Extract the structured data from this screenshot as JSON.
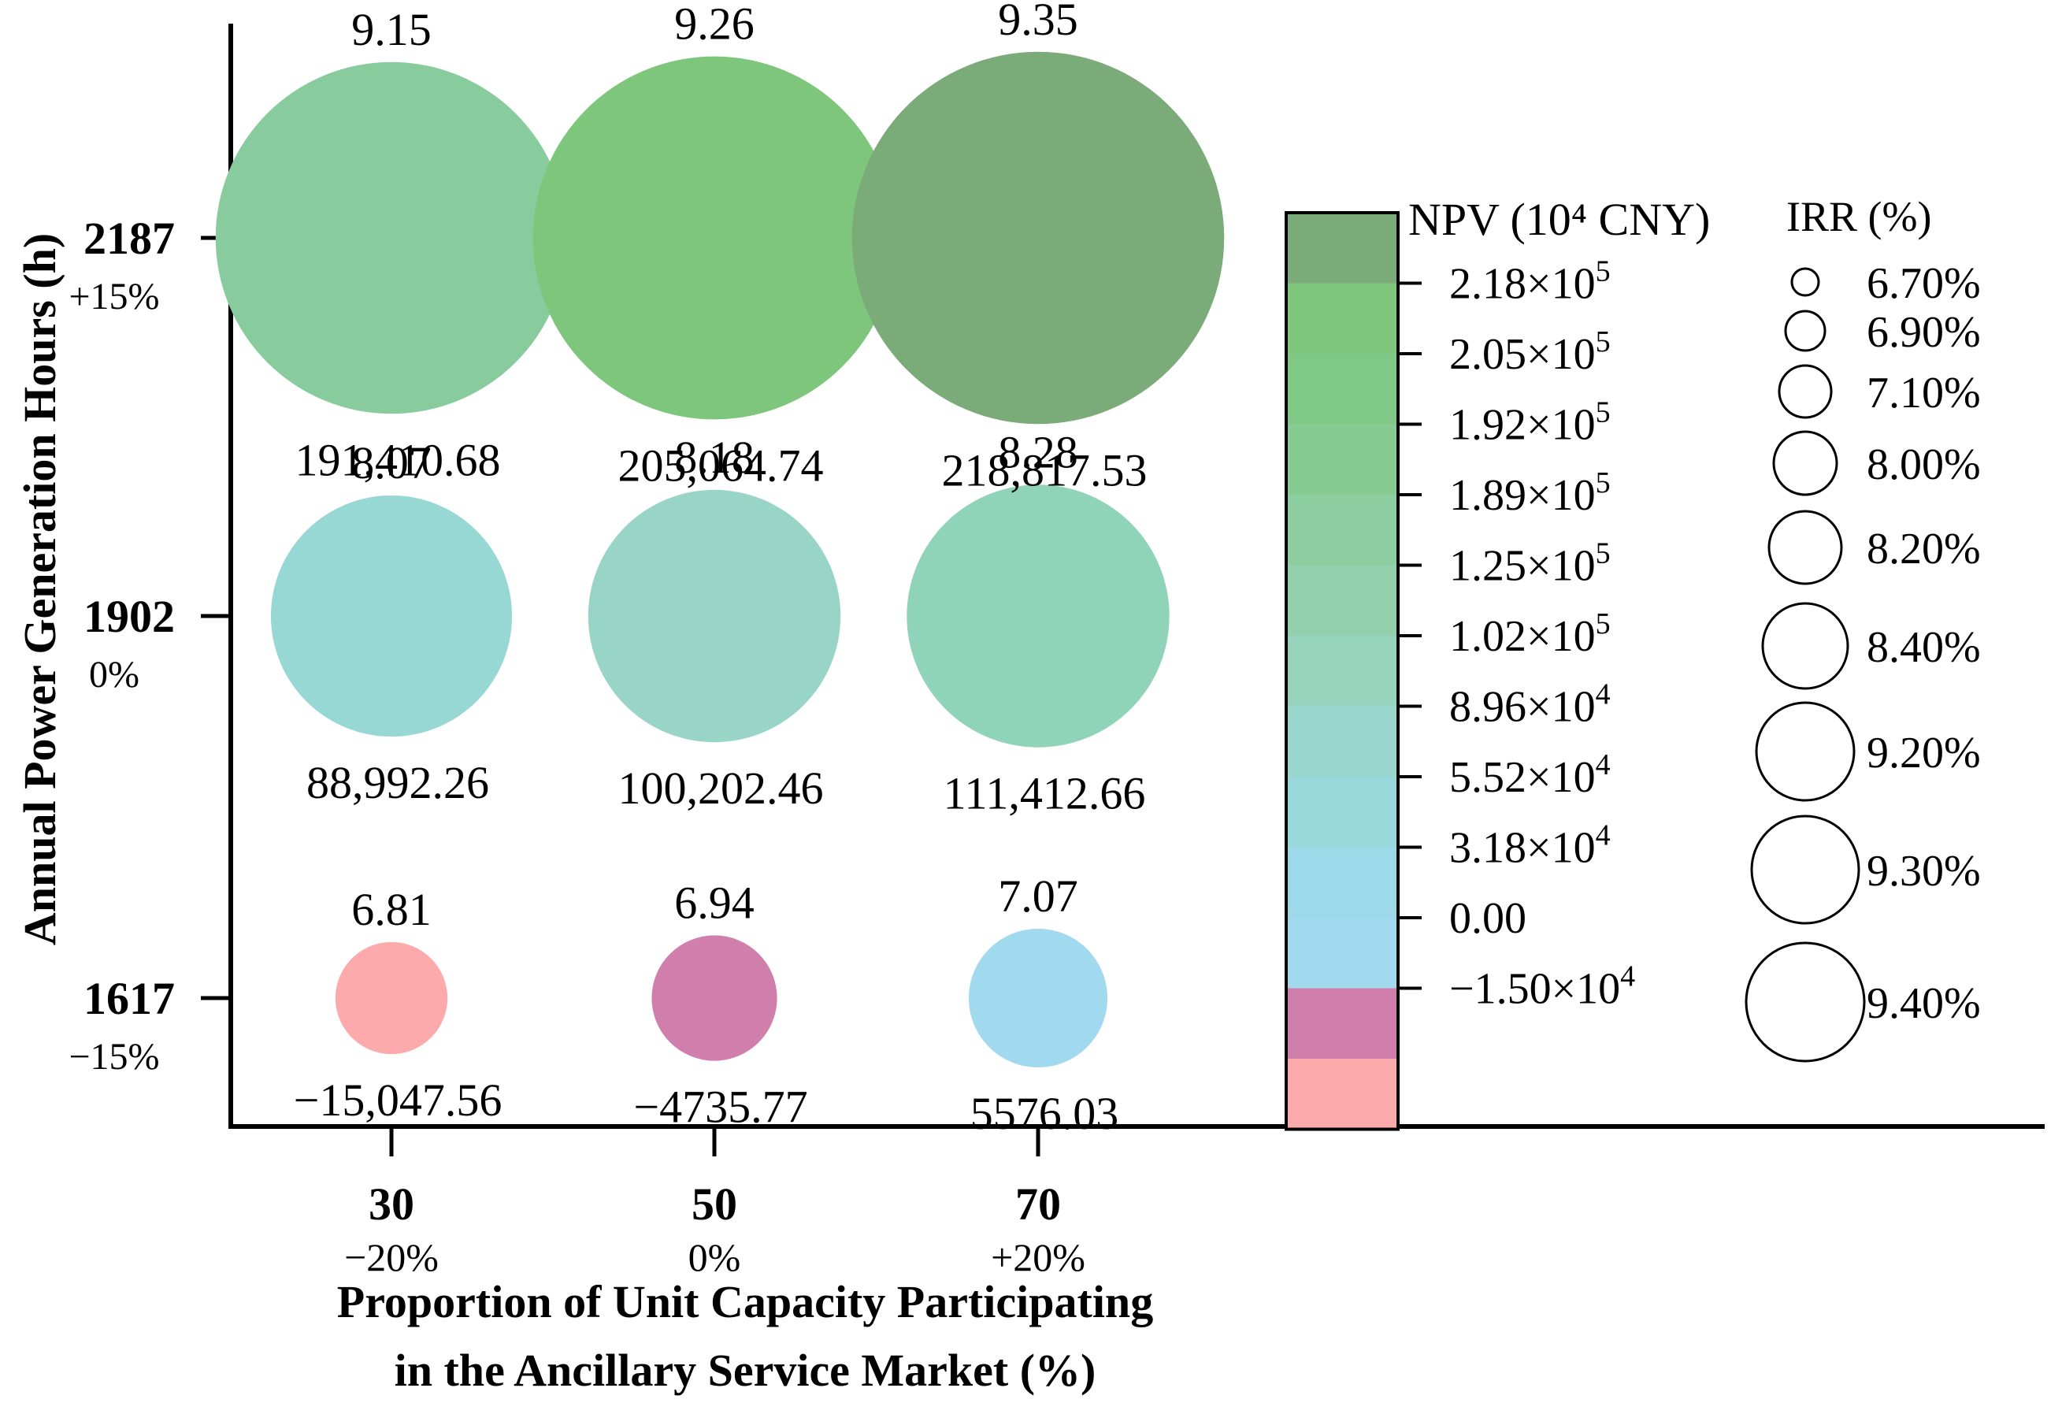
{
  "chart_data": {
    "type": "bubble",
    "xlabel_lines": [
      "Proportion of Unit Capacity Participating",
      "in the Ancillary Service Market (%)"
    ],
    "ylabel": "Annual Power Generation Hours (h)",
    "x_categories": [
      {
        "value": "30",
        "change": "−20%"
      },
      {
        "value": "50",
        "change": "0%"
      },
      {
        "value": "70",
        "change": "+20%"
      }
    ],
    "y_categories": [
      {
        "value": "2187",
        "change": "+15%"
      },
      {
        "value": "1902",
        "change": "0%"
      },
      {
        "value": "1617",
        "change": "−15%"
      }
    ],
    "points": [
      {
        "x": "30",
        "y": "2187",
        "irr": 9.15,
        "irr_label": "9.15",
        "npv": 191410.68,
        "npv_label": "191,410.68",
        "color": "#88cc9e"
      },
      {
        "x": "50",
        "y": "2187",
        "irr": 9.26,
        "irr_label": "9.26",
        "npv": 205064.74,
        "npv_label": "205,064.74",
        "color": "#7dc67c"
      },
      {
        "x": "70",
        "y": "2187",
        "irr": 9.35,
        "irr_label": "9.35",
        "npv": 218817.53,
        "npv_label": "218,817.53",
        "color": "#7aab79"
      },
      {
        "x": "30",
        "y": "1902",
        "irr": 8.07,
        "irr_label": "8.07",
        "npv": 88992.26,
        "npv_label": "88,992.26",
        "color": "#98d8d4"
      },
      {
        "x": "50",
        "y": "1902",
        "irr": 8.18,
        "irr_label": "8.18",
        "npv": 100202.46,
        "npv_label": "100,202.46",
        "color": "#98d5c6"
      },
      {
        "x": "70",
        "y": "1902",
        "irr": 8.28,
        "irr_label": "8.28",
        "npv": 111412.66,
        "npv_label": "111,412.66",
        "color": "#8fd3b8"
      },
      {
        "x": "30",
        "y": "1617",
        "irr": 6.81,
        "irr_label": "6.81",
        "npv": -15047.56,
        "npv_label": "−15,047.56",
        "color": "#fcaaab"
      },
      {
        "x": "50",
        "y": "1617",
        "irr": 6.94,
        "irr_label": "6.94",
        "npv": -4735.77,
        "npv_label": "−4735.77",
        "color": "#d07fad"
      },
      {
        "x": "70",
        "y": "1617",
        "irr": 7.07,
        "irr_label": "7.07",
        "npv": 5576.03,
        "npv_label": "5576.03",
        "color": "#a1d9ee"
      }
    ],
    "colorbar": {
      "title": "NPV (10⁴ CNY)",
      "ticks": [
        {
          "mantissa": "2.18×10",
          "exp": "5",
          "value": 218000
        },
        {
          "mantissa": "2.05×10",
          "exp": "5",
          "value": 205000
        },
        {
          "mantissa": "1.92×10",
          "exp": "5",
          "value": 192000
        },
        {
          "mantissa": "1.89×10",
          "exp": "5",
          "value": 189000
        },
        {
          "mantissa": "1.25×10",
          "exp": "5",
          "value": 125000
        },
        {
          "mantissa": "1.02×10",
          "exp": "5",
          "value": 102000
        },
        {
          "mantissa": "8.96×10",
          "exp": "4",
          "value": 89600
        },
        {
          "mantissa": "5.52×10",
          "exp": "4",
          "value": 55200
        },
        {
          "mantissa": "3.18×10",
          "exp": "4",
          "value": 31800
        },
        {
          "mantissa": "0.00",
          "exp": "",
          "value": 0
        },
        {
          "mantissa": "−1.50×10",
          "exp": "4",
          "value": -15000
        }
      ],
      "band_colors": [
        "#7aab79",
        "#7dc67c",
        "#7fc886",
        "#85cb92",
        "#8dcea0",
        "#92d1ab",
        "#97d4bd",
        "#98d6ce",
        "#99d8db",
        "#9ed9e9",
        "#a1d9ee",
        "#d07fad",
        "#fcaaab"
      ]
    },
    "size_legend": {
      "title": "IRR (%)",
      "items": [
        {
          "label": "6.70%",
          "value": 6.7
        },
        {
          "label": "6.90%",
          "value": 6.9
        },
        {
          "label": "7.10%",
          "value": 7.1
        },
        {
          "label": "8.00%",
          "value": 8.0
        },
        {
          "label": "8.20%",
          "value": 8.2
        },
        {
          "label": "8.40%",
          "value": 8.4
        },
        {
          "label": "9.20%",
          "value": 9.2
        },
        {
          "label": "9.30%",
          "value": 9.3
        },
        {
          "label": "9.40%",
          "value": 9.4
        }
      ]
    }
  }
}
